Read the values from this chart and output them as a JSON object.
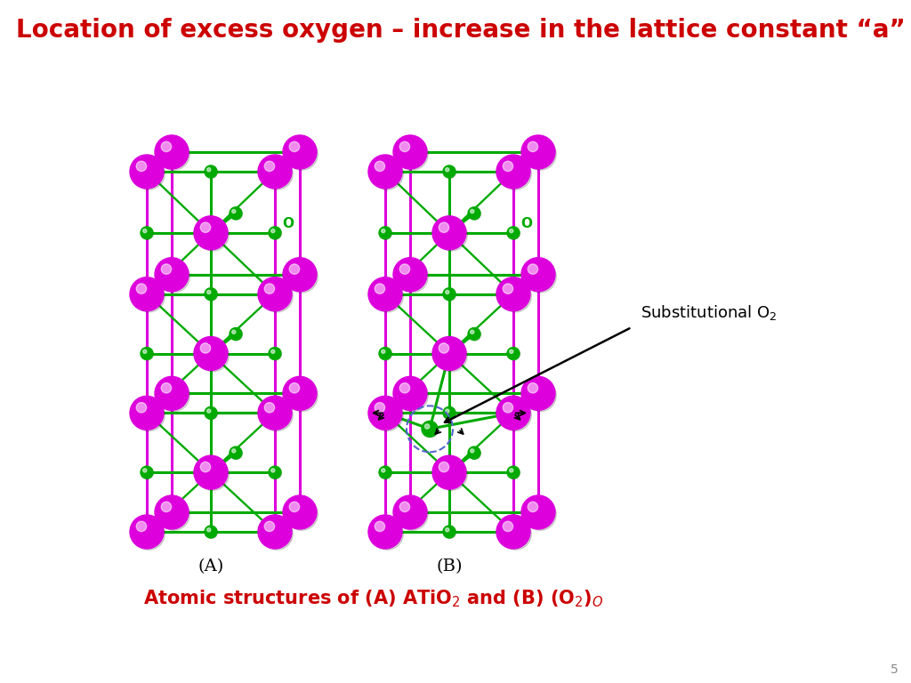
{
  "title": "Location of excess oxygen – increase in the lattice constant “a”",
  "title_color": "#cc0000",
  "title_fontsize": 20,
  "caption_color": "#cc0000",
  "caption_fontsize": 15,
  "background_color": "#ffffff",
  "page_number": "5",
  "label_A": "(A)",
  "label_B": "(B)",
  "magenta": "#dd00dd",
  "green_bond": "#00aa00",
  "magenta_bond": "#dd00dd",
  "blue_cage": "#8899cc",
  "green_small": "#00aa00",
  "dashed_circle_color": "#5566cc",
  "ann_color": "#000000",
  "Ti_color": "#dd00dd",
  "O_color": "#00aa00"
}
